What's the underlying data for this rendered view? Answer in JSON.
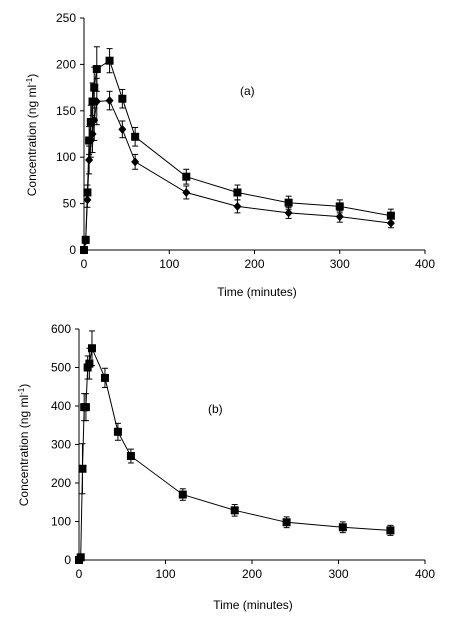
{
  "chart_data": [
    {
      "type": "scatter",
      "panel_label": "(a)",
      "xlabel": "Time (minutes)",
      "ylabel": "Concentration (ng ml",
      "ylabel_sup": "-1",
      "ylabel_close": ")",
      "xlim": [
        0,
        400
      ],
      "ylim": [
        0,
        250
      ],
      "xticks": [
        "0",
        "100",
        "200",
        "300",
        "400"
      ],
      "yticks": [
        "0",
        "50",
        "100",
        "150",
        "200",
        "250"
      ],
      "grid": false,
      "series": [
        {
          "marker": "square",
          "x": [
            0,
            2,
            4,
            6,
            8,
            10,
            12,
            15,
            30,
            45,
            60,
            120,
            180,
            240,
            300,
            360
          ],
          "y": [
            0,
            11,
            62,
            118,
            138,
            160,
            175,
            195,
            204,
            163,
            122,
            79,
            62,
            51,
            47,
            37
          ],
          "err": [
            0,
            3,
            8,
            15,
            18,
            20,
            22,
            24,
            13,
            10,
            10,
            8,
            8,
            7,
            7,
            7
          ]
        },
        {
          "marker": "diamond",
          "x": [
            0,
            2,
            4,
            6,
            8,
            10,
            12,
            15,
            30,
            45,
            60,
            120,
            180,
            240,
            300,
            360
          ],
          "y": [
            0,
            10,
            54,
            97,
            118,
            125,
            140,
            160,
            161,
            130,
            95,
            62,
            47,
            40,
            36,
            29
          ],
          "err": [
            0,
            3,
            8,
            15,
            18,
            20,
            22,
            25,
            10,
            9,
            8,
            7,
            7,
            6,
            6,
            5
          ]
        }
      ]
    },
    {
      "type": "scatter",
      "panel_label": "(b)",
      "xlabel": "Time (minutes)",
      "ylabel": "Concentration (ng ml",
      "ylabel_sup": "-1",
      "ylabel_close": ")",
      "xlim": [
        0,
        400
      ],
      "ylim": [
        0,
        600
      ],
      "xticks": [
        "0",
        "100",
        "200",
        "300",
        "400"
      ],
      "yticks": [
        "0",
        "100",
        "200",
        "300",
        "400",
        "500",
        "600"
      ],
      "grid": false,
      "series": [
        {
          "marker": "square",
          "x": [
            0,
            2,
            4,
            6,
            8,
            10,
            12,
            15,
            30,
            45,
            60,
            120,
            180,
            240,
            305,
            360
          ],
          "y": [
            0,
            7,
            237,
            397,
            397,
            500,
            510,
            550,
            473,
            333,
            270,
            170,
            129,
            98,
            85,
            77
          ],
          "err": [
            0,
            5,
            65,
            35,
            35,
            30,
            40,
            45,
            25,
            22,
            18,
            15,
            15,
            14,
            14,
            13
          ]
        }
      ]
    }
  ]
}
